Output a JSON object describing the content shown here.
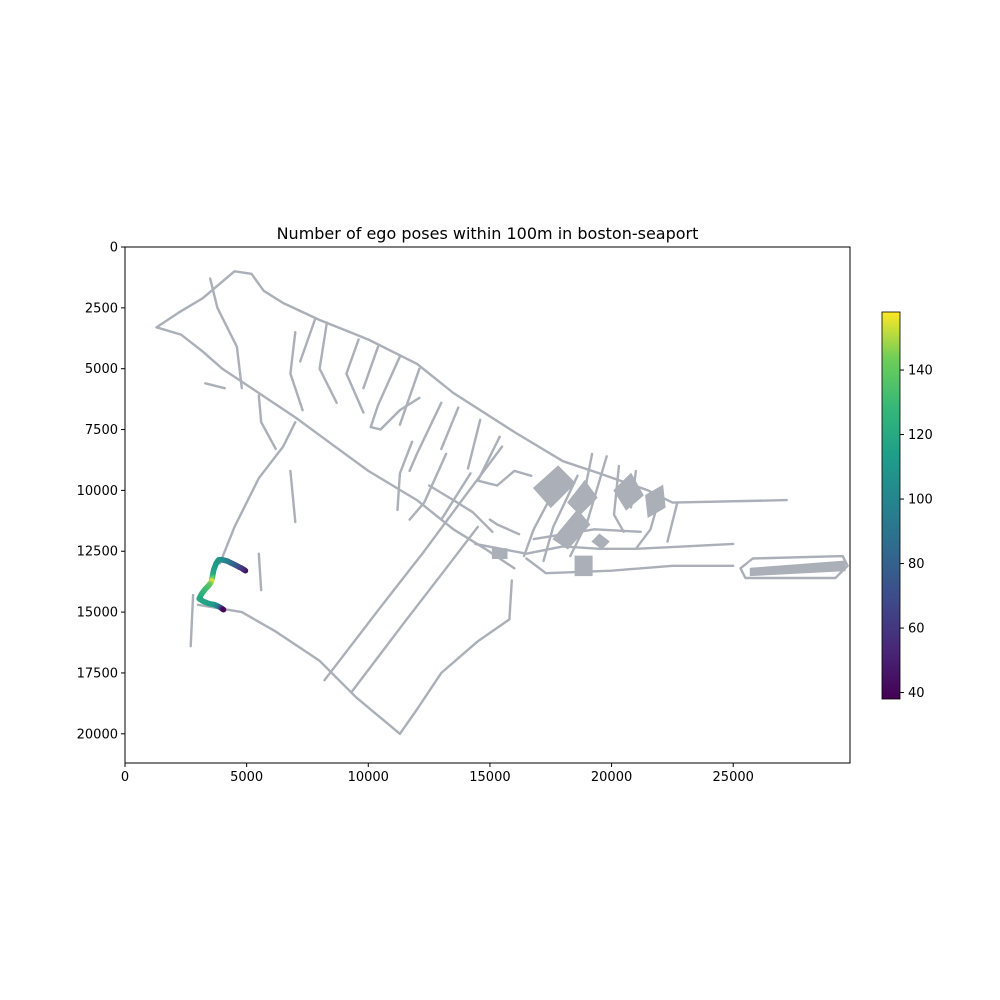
{
  "chart_data": {
    "type": "scatter",
    "title": "Number of ego poses within 100m in boston-seaport",
    "xlabel": "",
    "ylabel": "",
    "xlim": [
      0,
      29800
    ],
    "ylim": [
      21200,
      0
    ],
    "x_ticks": [
      0,
      5000,
      10000,
      15000,
      20000,
      25000
    ],
    "x_tick_labels": [
      "0",
      "5000",
      "10000",
      "15000",
      "20000",
      "25000"
    ],
    "y_ticks": [
      0,
      2500,
      5000,
      7500,
      10000,
      12500,
      15000,
      17500,
      20000
    ],
    "y_tick_labels": [
      "0",
      "2500",
      "5000",
      "7500",
      "10000",
      "12500",
      "15000",
      "17500",
      "20000"
    ],
    "grid": false,
    "colormap": "viridis",
    "colorbar": {
      "range": [
        38,
        158
      ],
      "ticks": [
        40,
        60,
        80,
        100,
        120,
        140
      ],
      "tick_labels": [
        "40",
        "60",
        "80",
        "100",
        "120",
        "140"
      ]
    },
    "colors": {
      "map": "#aaafb8",
      "viridis_low": "#440154",
      "viridis_mid": "#21918c",
      "viridis_high": "#fde725"
    },
    "map_roads": [
      [
        [
          1300,
          3300
        ],
        [
          2300,
          3600
        ],
        [
          3200,
          4300
        ],
        [
          4000,
          5000
        ],
        [
          5500,
          6000
        ],
        [
          7000,
          7000
        ],
        [
          8500,
          8100
        ],
        [
          10000,
          9200
        ],
        [
          12000,
          10400
        ],
        [
          13500,
          11600
        ],
        [
          14800,
          12400
        ],
        [
          16000,
          13200
        ]
      ],
      [
        [
          1300,
          3300
        ],
        [
          2200,
          2700
        ],
        [
          3200,
          2100
        ],
        [
          4500,
          1000
        ],
        [
          5200,
          1100
        ],
        [
          5700,
          1800
        ],
        [
          6500,
          2300
        ],
        [
          8000,
          3000
        ],
        [
          10000,
          3800
        ],
        [
          12000,
          4800
        ],
        [
          13500,
          6000
        ],
        [
          16000,
          7600
        ],
        [
          18000,
          8800
        ],
        [
          19500,
          9300
        ],
        [
          21500,
          10000
        ],
        [
          22500,
          10500
        ],
        [
          27200,
          10400
        ]
      ],
      [
        [
          3900,
          13000
        ],
        [
          4500,
          11500
        ],
        [
          5500,
          9500
        ],
        [
          6500,
          8200
        ],
        [
          7000,
          7200
        ]
      ],
      [
        [
          3000,
          14700
        ],
        [
          4800,
          15000
        ],
        [
          6200,
          15800
        ],
        [
          8000,
          17000
        ],
        [
          9500,
          18500
        ],
        [
          11300,
          20000
        ]
      ],
      [
        [
          11300,
          20000
        ],
        [
          12000,
          19000
        ],
        [
          13000,
          17500
        ],
        [
          14500,
          16200
        ],
        [
          15800,
          15300
        ],
        [
          15900,
          13700
        ]
      ],
      [
        [
          8200,
          17800
        ],
        [
          10500,
          14800
        ],
        [
          12300,
          12500
        ],
        [
          14000,
          10200
        ],
        [
          15500,
          8200
        ]
      ],
      [
        [
          9300,
          18300
        ],
        [
          11500,
          15400
        ],
        [
          13200,
          13200
        ],
        [
          14500,
          11500
        ]
      ],
      [
        [
          4800,
          5800
        ],
        [
          4600,
          4100
        ],
        [
          3800,
          2500
        ],
        [
          3500,
          1300
        ]
      ],
      [
        [
          4100,
          5800
        ],
        [
          3300,
          5600
        ]
      ],
      [
        [
          5500,
          6100
        ],
        [
          5600,
          7200
        ],
        [
          6200,
          8300
        ]
      ],
      [
        [
          7000,
          3500
        ],
        [
          6800,
          5200
        ],
        [
          7300,
          6700
        ]
      ],
      [
        [
          7800,
          3000
        ],
        [
          7200,
          4700
        ]
      ],
      [
        [
          8300,
          3100
        ],
        [
          8000,
          5000
        ],
        [
          8700,
          6400
        ]
      ],
      [
        [
          9600,
          3800
        ],
        [
          9100,
          5200
        ],
        [
          9800,
          6800
        ]
      ],
      [
        [
          10400,
          4100
        ],
        [
          9800,
          5800
        ]
      ],
      [
        [
          11300,
          4500
        ],
        [
          10400,
          6500
        ],
        [
          10100,
          7400
        ],
        [
          10500,
          7500
        ],
        [
          11300,
          6700
        ],
        [
          12100,
          6200
        ]
      ],
      [
        [
          12100,
          5000
        ],
        [
          11300,
          7300
        ]
      ],
      [
        [
          13000,
          6400
        ],
        [
          12000,
          8500
        ],
        [
          11700,
          9200
        ]
      ],
      [
        [
          13700,
          6600
        ],
        [
          13000,
          8300
        ]
      ],
      [
        [
          14600,
          7100
        ],
        [
          14100,
          9100
        ]
      ],
      [
        [
          15400,
          7800
        ],
        [
          14500,
          9600
        ],
        [
          15300,
          9800
        ],
        [
          16000,
          9200
        ],
        [
          16700,
          9400
        ]
      ],
      [
        [
          13200,
          8500
        ],
        [
          12300,
          10500
        ],
        [
          11700,
          11200
        ]
      ],
      [
        [
          14200,
          9300
        ],
        [
          13000,
          11200
        ]
      ],
      [
        [
          11800,
          8000
        ],
        [
          11300,
          9300
        ],
        [
          11200,
          10800
        ]
      ],
      [
        [
          12500,
          9800
        ],
        [
          13500,
          10400
        ],
        [
          14300,
          10900
        ],
        [
          15100,
          11700
        ]
      ],
      [
        [
          15000,
          11200
        ],
        [
          15300,
          11400
        ],
        [
          16200,
          11800
        ]
      ],
      [
        [
          14400,
          12200
        ],
        [
          16500,
          12600
        ],
        [
          18000,
          12300
        ],
        [
          19500,
          12400
        ],
        [
          21000,
          12400
        ],
        [
          23000,
          12300
        ],
        [
          25000,
          12200
        ]
      ],
      [
        [
          16500,
          12800
        ],
        [
          17300,
          13400
        ],
        [
          20000,
          13300
        ],
        [
          22500,
          13100
        ],
        [
          25000,
          13100
        ]
      ],
      [
        [
          17800,
          9700
        ],
        [
          16800,
          11600
        ],
        [
          16400,
          12700
        ]
      ],
      [
        [
          18600,
          9400
        ],
        [
          17600,
          11500
        ],
        [
          17200,
          12900
        ]
      ],
      [
        [
          19200,
          8500
        ],
        [
          18700,
          11000
        ]
      ],
      [
        [
          19800,
          8600
        ],
        [
          19000,
          11300
        ],
        [
          18300,
          12700
        ]
      ],
      [
        [
          20300,
          9000
        ],
        [
          20100,
          11000
        ],
        [
          20500,
          11700
        ]
      ],
      [
        [
          21000,
          9200
        ],
        [
          20800,
          10700
        ]
      ],
      [
        [
          22000,
          10200
        ],
        [
          21600,
          11600
        ],
        [
          21000,
          12400
        ]
      ],
      [
        [
          22700,
          10500
        ],
        [
          22300,
          12100
        ]
      ],
      [
        [
          16800,
          12000
        ],
        [
          19300,
          11600
        ],
        [
          21200,
          11700
        ]
      ],
      [
        [
          25300,
          13200
        ],
        [
          25500,
          13600
        ],
        [
          29200,
          13600
        ],
        [
          29700,
          13100
        ],
        [
          29500,
          12700
        ],
        [
          25800,
          12800
        ],
        [
          25300,
          13200
        ]
      ],
      [
        [
          2800,
          14300
        ],
        [
          2700,
          16400
        ]
      ],
      [
        [
          6800,
          9200
        ],
        [
          7000,
          11300
        ]
      ],
      [
        [
          5500,
          12600
        ],
        [
          5600,
          14100
        ]
      ]
    ],
    "map_blocks": [
      [
        [
          16800,
          9900
        ],
        [
          17800,
          9000
        ],
        [
          18500,
          9700
        ],
        [
          17500,
          10700
        ]
      ],
      [
        [
          18200,
          10500
        ],
        [
          18900,
          9600
        ],
        [
          19400,
          10300
        ],
        [
          18700,
          11000
        ]
      ],
      [
        [
          20100,
          10000
        ],
        [
          20800,
          9300
        ],
        [
          21300,
          10200
        ],
        [
          20600,
          10800
        ]
      ],
      [
        [
          17600,
          12000
        ],
        [
          18600,
          10800
        ],
        [
          19100,
          11400
        ],
        [
          18200,
          12400
        ]
      ],
      [
        [
          19200,
          12100
        ],
        [
          19500,
          11800
        ],
        [
          19900,
          12100
        ],
        [
          19600,
          12400
        ]
      ],
      [
        [
          18500,
          12700
        ],
        [
          19200,
          12700
        ],
        [
          19200,
          13500
        ],
        [
          18500,
          13500
        ]
      ],
      [
        [
          25700,
          13200
        ],
        [
          29600,
          12900
        ],
        [
          29600,
          13300
        ],
        [
          25700,
          13500
        ]
      ],
      [
        [
          21400,
          10200
        ],
        [
          22100,
          9800
        ],
        [
          22200,
          10700
        ],
        [
          21500,
          11100
        ]
      ],
      [
        [
          15100,
          12400
        ],
        [
          15700,
          12400
        ],
        [
          15700,
          12800
        ],
        [
          15100,
          12800
        ]
      ]
    ],
    "ego_poses": [
      [
        4950,
        13300,
        42
      ],
      [
        4800,
        13200,
        55
      ],
      [
        4600,
        13100,
        68
      ],
      [
        4400,
        13000,
        80
      ],
      [
        4200,
        12900,
        92
      ],
      [
        4000,
        12850,
        100
      ],
      [
        3850,
        12850,
        106
      ],
      [
        3750,
        13000,
        110
      ],
      [
        3650,
        13250,
        114
      ],
      [
        3600,
        13500,
        120
      ],
      [
        3550,
        13750,
        156
      ],
      [
        3450,
        13900,
        140
      ],
      [
        3300,
        14050,
        132
      ],
      [
        3150,
        14250,
        126
      ],
      [
        3050,
        14450,
        120
      ],
      [
        3200,
        14550,
        118
      ],
      [
        3450,
        14650,
        115
      ],
      [
        3700,
        14700,
        112
      ],
      [
        3900,
        14800,
        90
      ],
      [
        4050,
        14900,
        40
      ]
    ]
  }
}
